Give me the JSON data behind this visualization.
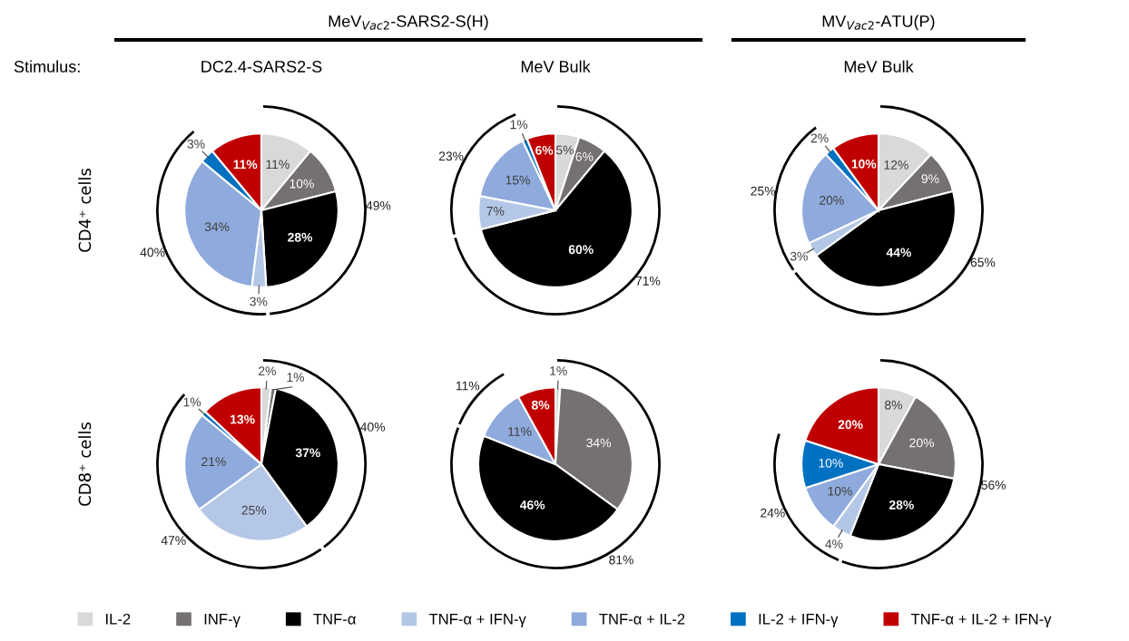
{
  "chart_data": [
    {
      "type": "pie",
      "title": "DC2.4-SARS2-S",
      "ylabel": "CD4⁺ cells",
      "legend": "bottom",
      "categories": [
        "IL-2",
        "INF-γ",
        "TNF-α",
        "TNF-α + IFN-γ",
        "TNF-α + IL-2",
        "IL-2 + IFN-γ",
        "TNF-α + IL-2 + IFN-γ"
      ],
      "values": [
        11,
        10,
        28,
        3,
        34,
        3,
        11
      ],
      "value_labels": [
        "11%",
        "10%",
        "28%",
        "3%",
        "34%",
        "3%",
        "11%"
      ],
      "colors": [
        "#d9d9d9",
        "#767171",
        "#000000",
        "#b4c7e7",
        "#8faadc",
        "#0070c0",
        "#c00000"
      ],
      "annotations": [
        "49%",
        "40%",
        "Stimulus:",
        "MeV$_{Vac2}$-SARS2-S(H)"
      ]
    },
    {
      "type": "pie",
      "title": "MeV Bulk",
      "categories": [
        null,
        null,
        null,
        null,
        null,
        null,
        null
      ],
      "values": [
        5,
        6,
        60,
        7,
        15,
        1,
        6
      ],
      "value_labels": [
        "5%",
        "6%",
        "60%",
        "7%",
        "15%",
        "1%",
        "6%"
      ],
      "colors": [
        "#d9d9d9",
        "#767171",
        "#000000",
        "#b4c7e7",
        "#8faadc",
        "#0070c0",
        "#c00000"
      ],
      "annotations": [
        "71%",
        "23%"
      ]
    },
    {
      "type": "pie",
      "title": "MeV Bulk",
      "categories": [
        null,
        null,
        null,
        null,
        null,
        null,
        null
      ],
      "values": [
        12,
        9,
        44,
        3,
        20,
        2,
        10
      ],
      "value_labels": [
        "12%",
        "9%",
        "44%",
        "3%",
        "20%",
        "2%",
        "10%"
      ],
      "colors": [
        "#d9d9d9",
        "#767171",
        "#000000",
        "#b4c7e7",
        "#8faadc",
        "#0070c0",
        "#c00000"
      ],
      "annotations": [
        "65%",
        "25%",
        "MV$_{Vac2}$-ATU(P)"
      ]
    },
    {
      "type": "pie",
      "ylabel": "CD8⁺ cells",
      "categories": [
        null,
        null,
        null,
        null,
        null,
        null,
        null
      ],
      "values": [
        2,
        1,
        37,
        25,
        21,
        1,
        13
      ],
      "value_labels": [
        "2%",
        "1%",
        "37%",
        "25%",
        "21%",
        "1%",
        "13%"
      ],
      "colors": [
        "#d9d9d9",
        "#767171",
        "#000000",
        "#b4c7e7",
        "#8faadc",
        "#0070c0",
        "#c00000"
      ],
      "annotations": [
        "40%",
        "47%"
      ]
    },
    {
      "type": "pie",
      "categories": [
        null,
        null,
        null,
        null,
        null,
        null,
        null
      ],
      "values": [
        1,
        34,
        46,
        0,
        11,
        0,
        8
      ],
      "value_labels": [
        "1%",
        "34%",
        "46%",
        null,
        "11%",
        null,
        "8%"
      ],
      "colors": [
        "#d9d9d9",
        "#767171",
        "#000000",
        "#b4c7e7",
        "#8faadc",
        "#0070c0",
        "#c00000"
      ],
      "annotations": [
        "81%",
        "11%"
      ]
    },
    {
      "type": "pie",
      "categories": [
        null,
        null,
        null,
        null,
        null,
        null,
        null
      ],
      "values": [
        8,
        20,
        28,
        4,
        10,
        10,
        20
      ],
      "value_labels": [
        "8%",
        "20%",
        "28%",
        "4%",
        "10%",
        "10%",
        "20%"
      ],
      "colors": [
        "#d9d9d9",
        "#767171",
        "#000000",
        "#b4c7e7",
        "#8faadc",
        "#0070c0",
        "#c00000"
      ],
      "annotations": [
        "56%",
        "24%"
      ]
    }
  ]
}
